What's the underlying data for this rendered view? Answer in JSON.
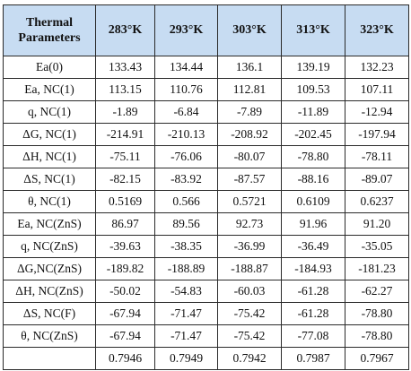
{
  "table": {
    "header": {
      "param_label": "Thermal Parameters",
      "temperatures": [
        "283°K",
        "293°K",
        "303°K",
        "313°K",
        "323°K"
      ]
    },
    "rows": [
      {
        "param": "Ea(0)",
        "values": [
          "133.43",
          "134.44",
          "136.1",
          "139.19",
          "132.23"
        ]
      },
      {
        "param": "Ea, NC(1)",
        "values": [
          "113.15",
          "110.76",
          "112.81",
          "109.53",
          "107.11"
        ]
      },
      {
        "param": "q, NC(1)",
        "values": [
          "-1.89",
          "-6.84",
          "-7.89",
          "-11.89",
          "-12.94"
        ]
      },
      {
        "param": "ΔG, NC(1)",
        "values": [
          "-214.91",
          "-210.13",
          "-208.92",
          "-202.45",
          "-197.94"
        ]
      },
      {
        "param": "ΔH, NC(1)",
        "values": [
          "-75.11",
          "-76.06",
          "-80.07",
          "-78.80",
          "-78.11"
        ]
      },
      {
        "param": "ΔS, NC(1)",
        "values": [
          "-82.15",
          "-83.92",
          "-87.57",
          "-88.16",
          "-89.07"
        ]
      },
      {
        "param": "θ, NC(1)",
        "values": [
          "0.5169",
          "0.566",
          "0.5721",
          "0.6109",
          "0.6237"
        ]
      },
      {
        "param": "Ea, NC(ZnS)",
        "values": [
          "86.97",
          "89.56",
          "92.73",
          "91.96",
          "91.20"
        ]
      },
      {
        "param": "q, NC(ZnS)",
        "values": [
          "-39.63",
          "-38.35",
          "-36.99",
          "-36.49",
          "-35.05"
        ]
      },
      {
        "param": "ΔG,NC(ZnS)",
        "values": [
          "-189.82",
          "-188.89",
          "-188.87",
          "-184.93",
          "-181.23"
        ]
      },
      {
        "param": "ΔH, NC(ZnS)",
        "values": [
          "-50.02",
          "-54.83",
          "-60.03",
          "-61.28",
          "-62.27"
        ]
      },
      {
        "param": "ΔS, NC(F)",
        "values": [
          "-67.94",
          "-71.47",
          "-75.42",
          "-61.28",
          "-78.80"
        ]
      },
      {
        "param": "θ, NC(ZnS)",
        "values": [
          "-67.94",
          "-71.47",
          "-75.42",
          "-77.08",
          "-78.80"
        ]
      },
      {
        "param": "",
        "values": [
          "0.7946",
          "0.7949",
          "0.7942",
          "0.7987",
          "0.7967"
        ]
      }
    ]
  }
}
